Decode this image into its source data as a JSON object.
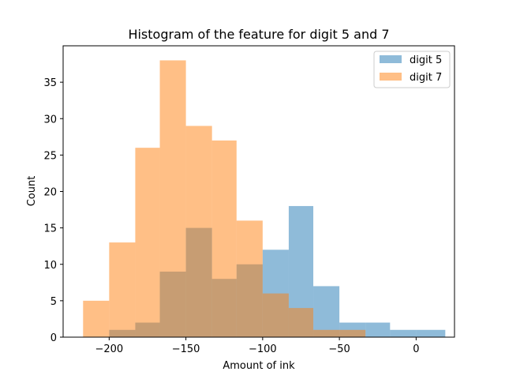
{
  "chart_data": {
    "type": "histogram",
    "title": "Histogram of the feature for digit 5 and 7",
    "xlabel": "Amount of ink",
    "ylabel": "Count",
    "xlim": [
      -230,
      25
    ],
    "ylim": [
      0,
      40
    ],
    "xticks": [
      -200,
      -150,
      -100,
      -50,
      0
    ],
    "yticks": [
      0,
      5,
      10,
      15,
      20,
      25,
      30,
      35
    ],
    "grid": false,
    "legend_position": "top-right",
    "series": [
      {
        "name": "digit 5",
        "color": "#1f77b4",
        "opacity": 0.5,
        "bin_edges": [
          -200,
          -183,
          -167,
          -150,
          -133,
          -117,
          -100,
          -83,
          -67,
          -50,
          -33,
          -17,
          0,
          19
        ],
        "counts": [
          1,
          2,
          9,
          15,
          8,
          10,
          12,
          18,
          7,
          2,
          2,
          1,
          1
        ]
      },
      {
        "name": "digit 7",
        "color": "#ff7f0e",
        "opacity": 0.5,
        "bin_edges": [
          -217,
          -200,
          -183,
          -167,
          -150,
          -133,
          -117,
          -100,
          -83,
          -67,
          -50,
          -33
        ],
        "counts": [
          5,
          13,
          26,
          38,
          29,
          27,
          16,
          6,
          4,
          1,
          1
        ]
      }
    ]
  }
}
